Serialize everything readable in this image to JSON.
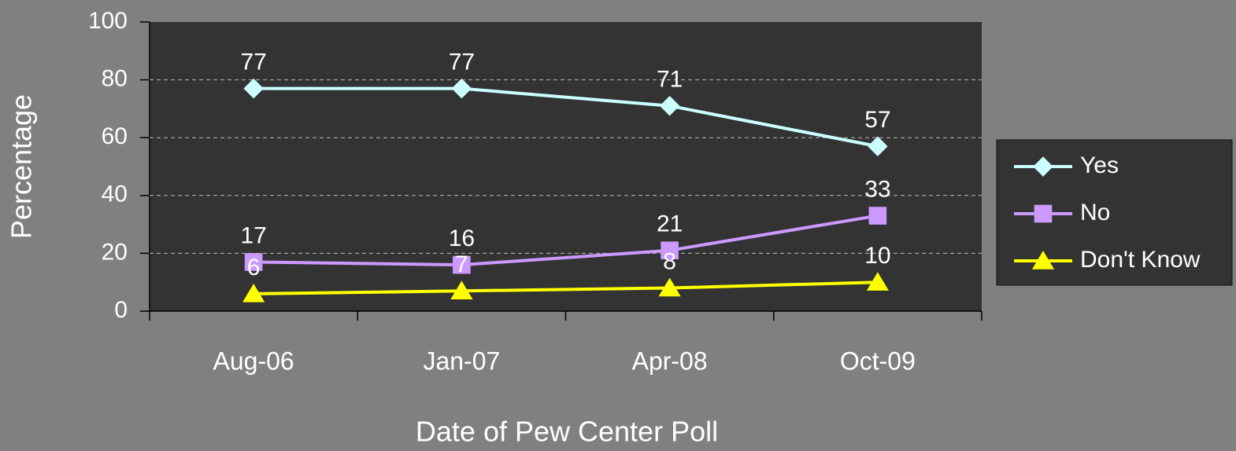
{
  "chart_data": {
    "type": "line",
    "xlabel": "Date of Pew Center Poll",
    "ylabel": "Percentage",
    "categories": [
      "Aug-06",
      "Jan-07",
      "Apr-08",
      "Oct-09"
    ],
    "series": [
      {
        "name": "Yes",
        "color": "#ccffff",
        "marker": "diamond",
        "values": [
          77,
          77,
          71,
          57
        ]
      },
      {
        "name": "No",
        "color": "#cc99ff",
        "marker": "square",
        "values": [
          17,
          16,
          21,
          33
        ]
      },
      {
        "name": "Don't Know",
        "color": "#ffff00",
        "marker": "triangle",
        "values": [
          6,
          7,
          8,
          10
        ]
      }
    ],
    "ylim": [
      0,
      100
    ],
    "yticks": [
      0,
      20,
      40,
      60,
      80,
      100
    ],
    "grid": true,
    "legend": "right",
    "data_labels": true
  }
}
